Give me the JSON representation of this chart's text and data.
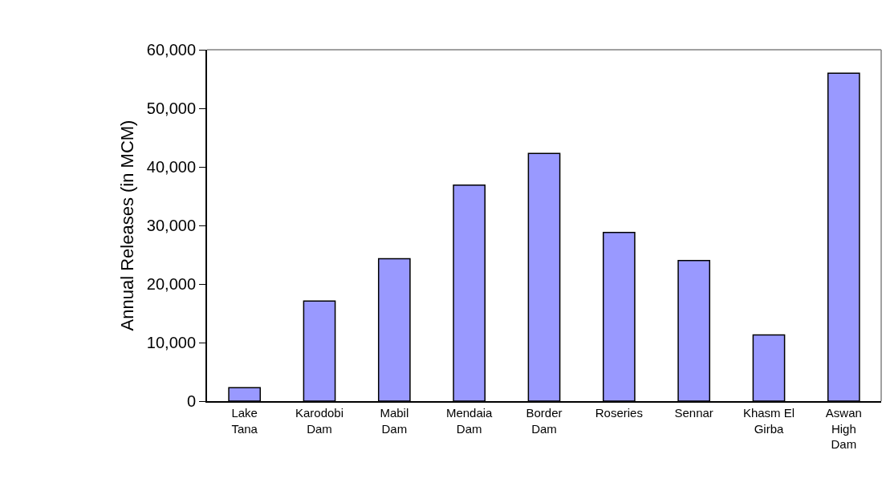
{
  "chart_data": {
    "type": "bar",
    "ylabel": "Annual Releases (in MCM)",
    "categories": [
      "Lake\nTana",
      "Karodobi\nDam",
      "Mabil\nDam",
      "Mendaia\nDam",
      "Border\nDam",
      "Roseries",
      "Sennar",
      "Khasm El\nGirba",
      "Aswan\nHigh\nDam"
    ],
    "values": [
      2300,
      17100,
      24300,
      36900,
      42300,
      28800,
      24000,
      11300,
      56000
    ],
    "color": "#9999ff",
    "ylim": [
      0,
      60000
    ],
    "yticks": [
      {
        "value": 0,
        "label": "0"
      },
      {
        "value": 10000,
        "label": "10,000"
      },
      {
        "value": 20000,
        "label": "20,000"
      },
      {
        "value": 30000,
        "label": "30,000"
      },
      {
        "value": 40000,
        "label": "40,000"
      },
      {
        "value": 50000,
        "label": "50,000"
      },
      {
        "value": 60000,
        "label": "60,000"
      }
    ]
  }
}
